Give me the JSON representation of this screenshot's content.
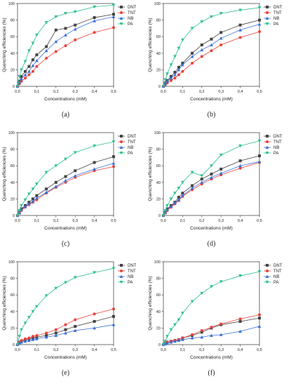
{
  "colors": {
    "DNT": "#444444",
    "TNT": "#e8413a",
    "NB": "#3b6fd8",
    "PA": "#2cc08f"
  },
  "markers": {
    "DNT": "square",
    "TNT": "circle",
    "NB": "triangle-up",
    "PA": "triangle-down"
  },
  "chart_data": [
    {
      "type": "line",
      "panel_label": "(a)",
      "xlabel": "Concentrations (mM)",
      "ylabel": "Quenching efficiencies (%)",
      "xlim": [
        0,
        0.5
      ],
      "ylim": [
        0,
        100
      ],
      "x_ticks": [
        "0,0",
        "0,1",
        "0,2",
        "0,3",
        "0,4",
        "0,5"
      ],
      "y_ticks": [
        "0",
        "20",
        "40",
        "60",
        "80",
        "100"
      ],
      "legend_position": "top-right",
      "x": [
        0,
        0.01,
        0.02,
        0.04,
        0.06,
        0.08,
        0.1,
        0.15,
        0.2,
        0.25,
        0.3,
        0.4,
        0.5
      ],
      "series": [
        {
          "name": "DNT",
          "values": [
            0,
            6,
            12,
            18,
            24,
            32,
            38,
            48,
            68,
            70,
            74,
            83,
            87
          ]
        },
        {
          "name": "TNT",
          "values": [
            0,
            3,
            6,
            10,
            14,
            18,
            24,
            34,
            42,
            49,
            56,
            65,
            71
          ]
        },
        {
          "name": "NB",
          "values": [
            0,
            5,
            9,
            14,
            18,
            25,
            31,
            43,
            54,
            62,
            69,
            79,
            84
          ]
        },
        {
          "name": "PA",
          "values": [
            0,
            12,
            20,
            30,
            43,
            52,
            62,
            77,
            84,
            88,
            90,
            96,
            98
          ]
        }
      ]
    },
    {
      "type": "line",
      "panel_label": "(b)",
      "xlabel": "Concentrations (mM)",
      "ylabel": "Quenching efficiencies (%)",
      "xlim": [
        0,
        0.5
      ],
      "ylim": [
        0,
        100
      ],
      "x_ticks": [
        "0,0",
        "0,1",
        "0,2",
        "0,3",
        "0,4",
        "0,5"
      ],
      "y_ticks": [
        "0",
        "20",
        "40",
        "60",
        "80",
        "100"
      ],
      "legend_position": "top-right",
      "x": [
        0,
        0.01,
        0.02,
        0.04,
        0.06,
        0.08,
        0.1,
        0.15,
        0.2,
        0.25,
        0.3,
        0.4,
        0.5
      ],
      "series": [
        {
          "name": "DNT",
          "values": [
            0,
            4,
            7,
            12,
            17,
            23,
            28,
            40,
            50,
            57,
            65,
            74,
            80
          ]
        },
        {
          "name": "TNT",
          "values": [
            0,
            2,
            4,
            7,
            10,
            14,
            18,
            28,
            36,
            43,
            50,
            59,
            66
          ]
        },
        {
          "name": "NB",
          "values": [
            0,
            3,
            6,
            10,
            14,
            20,
            26,
            36,
            44,
            50,
            58,
            68,
            75
          ]
        },
        {
          "name": "PA",
          "values": [
            0,
            8,
            15,
            26,
            36,
            46,
            56,
            70,
            78,
            84,
            88,
            92,
            95
          ]
        }
      ]
    },
    {
      "type": "line",
      "panel_label": "(c)",
      "xlabel": "Concentrations (mM)",
      "ylabel": "Quenching efficiencies (%)",
      "xlim": [
        0,
        0.5
      ],
      "ylim": [
        0,
        100
      ],
      "x_ticks": [
        "0,0",
        "0,1",
        "0,2",
        "0,3",
        "0,4",
        "0,5"
      ],
      "y_ticks": [
        "0",
        "20",
        "40",
        "60",
        "80",
        "100"
      ],
      "legend_position": "top-right",
      "x": [
        0,
        0.01,
        0.02,
        0.04,
        0.06,
        0.08,
        0.1,
        0.15,
        0.2,
        0.25,
        0.3,
        0.4,
        0.5
      ],
      "series": [
        {
          "name": "DNT",
          "values": [
            0,
            4,
            8,
            12,
            16,
            20,
            24,
            32,
            40,
            47,
            54,
            64,
            71
          ]
        },
        {
          "name": "TNT",
          "values": [
            0,
            3,
            6,
            10,
            13,
            16,
            19,
            27,
            34,
            40,
            46,
            54,
            59
          ]
        },
        {
          "name": "NB",
          "values": [
            0,
            3,
            7,
            11,
            14,
            17,
            21,
            28,
            35,
            42,
            48,
            56,
            63
          ]
        },
        {
          "name": "PA",
          "values": [
            0,
            6,
            12,
            19,
            26,
            32,
            38,
            52,
            60,
            68,
            76,
            84,
            89
          ]
        }
      ]
    },
    {
      "type": "line",
      "panel_label": "(d)",
      "xlabel": "Concentrations (mM)",
      "ylabel": "Quenching efficiencies (%)",
      "xlim": [
        0,
        0.5
      ],
      "ylim": [
        0,
        100
      ],
      "x_ticks": [
        "0,0",
        "0,1",
        "0,2",
        "0,3",
        "0,4",
        "0,5"
      ],
      "y_ticks": [
        "0",
        "20",
        "40",
        "60",
        "80",
        "100"
      ],
      "legend_position": "top-right",
      "x": [
        0,
        0.01,
        0.02,
        0.04,
        0.06,
        0.08,
        0.1,
        0.15,
        0.2,
        0.25,
        0.3,
        0.4,
        0.5
      ],
      "series": [
        {
          "name": "DNT",
          "values": [
            0,
            4,
            8,
            12,
            16,
            22,
            27,
            36,
            44,
            50,
            56,
            66,
            72
          ]
        },
        {
          "name": "TNT",
          "values": [
            0,
            3,
            6,
            10,
            14,
            18,
            23,
            31,
            38,
            44,
            49,
            57,
            64
          ]
        },
        {
          "name": "NB",
          "values": [
            0,
            4,
            7,
            11,
            15,
            19,
            24,
            33,
            40,
            46,
            51,
            60,
            65
          ]
        },
        {
          "name": "PA",
          "values": [
            0,
            6,
            12,
            20,
            27,
            33,
            40,
            52,
            48,
            60,
            73,
            84,
            90
          ]
        }
      ]
    },
    {
      "type": "line",
      "panel_label": "(e)",
      "xlabel": "Concentrations (mM)",
      "ylabel": "Quenching efficiencies (%)",
      "xlim": [
        0,
        0.5
      ],
      "ylim": [
        0,
        100
      ],
      "x_ticks": [
        "0,0",
        "0,1",
        "0,2",
        "0,3",
        "0,4",
        "0,5"
      ],
      "y_ticks": [
        "0",
        "20",
        "40",
        "60",
        "80",
        "100"
      ],
      "legend_position": "top-right",
      "x": [
        0,
        0.01,
        0.02,
        0.04,
        0.06,
        0.08,
        0.1,
        0.15,
        0.2,
        0.25,
        0.3,
        0.4,
        0.5
      ],
      "series": [
        {
          "name": "DNT",
          "values": [
            0,
            3,
            4,
            6,
            7,
            8,
            9,
            11,
            14,
            18,
            22,
            28,
            34
          ]
        },
        {
          "name": "TNT",
          "values": [
            0,
            3,
            5,
            7,
            8,
            10,
            11,
            14,
            18,
            24,
            30,
            37,
            43
          ]
        },
        {
          "name": "NB",
          "values": [
            0,
            2,
            3,
            4,
            5,
            6,
            7,
            9,
            11,
            14,
            17,
            20,
            24
          ]
        },
        {
          "name": "PA",
          "values": [
            0,
            10,
            18,
            26,
            33,
            40,
            46,
            59,
            68,
            75,
            81,
            87,
            92
          ]
        }
      ]
    },
    {
      "type": "line",
      "panel_label": "(f)",
      "xlabel": "Concentrations (mM)",
      "ylabel": "Quenching efficiencies (%)",
      "xlim": [
        0,
        0.5
      ],
      "ylim": [
        0,
        100
      ],
      "x_ticks": [
        "0,0",
        "0,1",
        "0,2",
        "0,3",
        "0,4",
        "0,5"
      ],
      "y_ticks": [
        "0",
        "20",
        "40",
        "60",
        "80",
        "100"
      ],
      "legend_position": "top-right",
      "x": [
        0,
        0.01,
        0.02,
        0.04,
        0.06,
        0.08,
        0.1,
        0.15,
        0.2,
        0.25,
        0.3,
        0.4,
        0.5
      ],
      "series": [
        {
          "name": "DNT",
          "values": [
            0,
            2,
            3,
            4,
            5,
            6,
            8,
            11,
            15,
            20,
            24,
            28,
            32
          ]
        },
        {
          "name": "TNT",
          "values": [
            0,
            2,
            3,
            4,
            5,
            6,
            8,
            12,
            17,
            21,
            25,
            31,
            36
          ]
        },
        {
          "name": "NB",
          "values": [
            0,
            1,
            2,
            3,
            4,
            5,
            6,
            8,
            9,
            11,
            12,
            16,
            22
          ]
        },
        {
          "name": "PA",
          "values": [
            0,
            4,
            10,
            18,
            24,
            30,
            38,
            52,
            62,
            70,
            76,
            83,
            88
          ]
        }
      ]
    }
  ]
}
